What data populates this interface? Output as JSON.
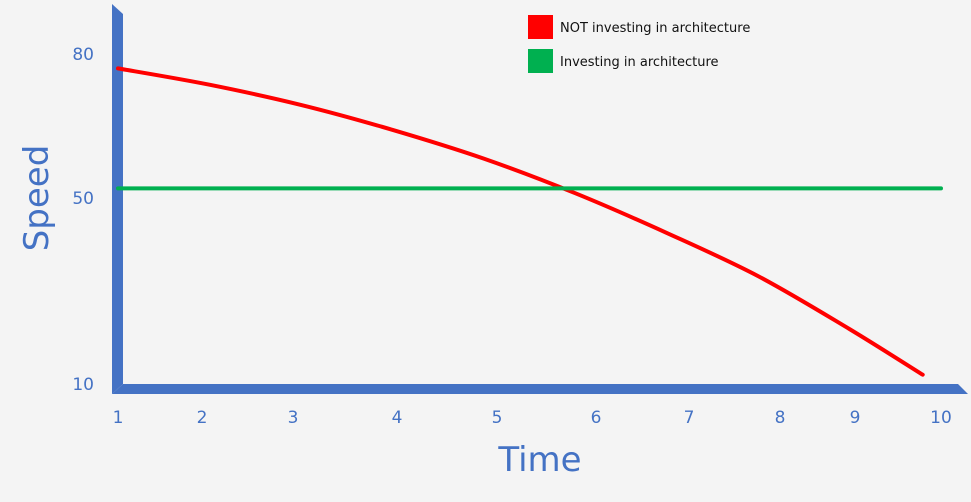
{
  "chart_data": {
    "type": "line",
    "title": "",
    "xlabel": "Time",
    "ylabel": "Speed",
    "x_ticks": [
      "1",
      "2",
      "3",
      "4",
      "5",
      "6",
      "7",
      "8",
      "9",
      "10"
    ],
    "y_ticks": [
      "10",
      "50",
      "80"
    ],
    "xlim": [
      1,
      10
    ],
    "grid": false,
    "legend_position": "top-right",
    "axis_color": "#4472c4",
    "series": [
      {
        "name": "NOT investing in architecture",
        "color": "#ff0000",
        "x": [
          1,
          2,
          3,
          4,
          5,
          6,
          7,
          8,
          9,
          9.8
        ],
        "y": [
          77,
          73.6,
          69.4,
          64.2,
          58.2,
          51,
          42.5,
          33.2,
          21.8,
          12
        ]
      },
      {
        "name": "Investing in architecture",
        "color": "#00b050",
        "x": [
          1,
          10
        ],
        "y": [
          52,
          52
        ]
      }
    ]
  }
}
